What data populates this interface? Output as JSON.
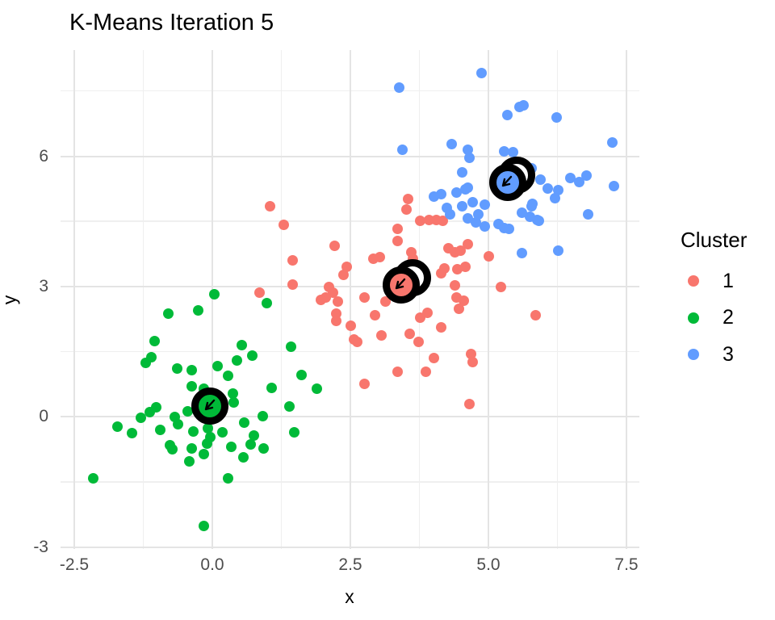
{
  "chart_data": {
    "type": "scatter",
    "title": "K-Means Iteration 5",
    "xlabel": "x",
    "ylabel": "y",
    "grid": true,
    "legend": {
      "title": "Cluster",
      "position": "right",
      "entries": [
        {
          "label": "1",
          "color": "#F8766D"
        },
        {
          "label": "2",
          "color": "#00BA38"
        },
        {
          "label": "3",
          "color": "#619CFF"
        }
      ]
    },
    "x_axis": {
      "range": [
        -2.72,
        7.74
      ],
      "ticks": [
        {
          "value": -2.5,
          "label": "-2.5"
        },
        {
          "value": 0.0,
          "label": "0.0"
        },
        {
          "value": 2.5,
          "label": "2.5"
        },
        {
          "value": 5.0,
          "label": "5.0"
        },
        {
          "value": 7.5,
          "label": "7.5"
        }
      ],
      "minor": [
        -1.25,
        1.25,
        3.75,
        6.25
      ]
    },
    "y_axis": {
      "range": [
        -3.05,
        8.45
      ],
      "ticks": [
        {
          "value": 6,
          "label": "6"
        },
        {
          "value": 3,
          "label": "3"
        },
        {
          "value": 0,
          "label": "0"
        },
        {
          "value": -3,
          "label": "-3"
        }
      ],
      "minor": [
        7.5,
        4.5,
        1.5,
        -1.5
      ]
    },
    "colors": {
      "grid_major": "#E4E4E4",
      "grid_minor": "#EFEFEF",
      "tick_text": "#4D4D4D",
      "center_ring": "#000000"
    },
    "series": [
      {
        "name": "1",
        "color": "#F8766D",
        "points": [
          [
            1.04,
            4.84
          ],
          [
            1.3,
            4.42
          ],
          [
            2.21,
            3.93
          ],
          [
            3.54,
            5.01
          ],
          [
            3.51,
            4.77
          ],
          [
            3.36,
            4.32
          ],
          [
            3.35,
            4.04
          ],
          [
            3.76,
            4.51
          ],
          [
            3.92,
            4.53
          ],
          [
            4.06,
            4.53
          ],
          [
            4.17,
            4.51
          ],
          [
            3.61,
            3.79
          ],
          [
            3.64,
            3.64
          ],
          [
            2.92,
            3.64
          ],
          [
            3.04,
            3.67
          ],
          [
            4.28,
            3.88
          ],
          [
            4.39,
            3.79
          ],
          [
            4.62,
            3.97
          ],
          [
            4.5,
            3.83
          ],
          [
            4.2,
            3.41
          ],
          [
            4.15,
            3.3
          ],
          [
            4.44,
            3.39
          ],
          [
            4.59,
            3.45
          ],
          [
            5.0,
            3.69
          ],
          [
            5.22,
            2.99
          ],
          [
            4.39,
            3.02
          ],
          [
            4.42,
            2.74
          ],
          [
            4.56,
            2.67
          ],
          [
            4.46,
            2.48
          ],
          [
            5.85,
            2.33
          ],
          [
            0.85,
            2.86
          ],
          [
            1.46,
            3.6
          ],
          [
            1.45,
            3.04
          ],
          [
            2.11,
            2.99
          ],
          [
            2.19,
            2.86
          ],
          [
            2.05,
            2.74
          ],
          [
            1.97,
            2.7
          ],
          [
            2.38,
            3.26
          ],
          [
            2.44,
            3.45
          ],
          [
            2.27,
            2.65
          ],
          [
            2.76,
            2.74
          ],
          [
            3.13,
            2.65
          ],
          [
            2.25,
            2.37
          ],
          [
            2.25,
            2.21
          ],
          [
            2.51,
            2.09
          ],
          [
            2.95,
            2.33
          ],
          [
            2.56,
            1.78
          ],
          [
            2.63,
            1.72
          ],
          [
            3.07,
            1.87
          ],
          [
            3.58,
            1.91
          ],
          [
            3.73,
            1.72
          ],
          [
            3.76,
            2.28
          ],
          [
            3.9,
            2.39
          ],
          [
            4.15,
            2.06
          ],
          [
            4.68,
            1.44
          ],
          [
            4.71,
            1.26
          ],
          [
            4.01,
            1.35
          ],
          [
            3.86,
            1.03
          ],
          [
            3.35,
            1.03
          ],
          [
            2.76,
            0.76
          ],
          [
            4.66,
            0.3
          ]
        ]
      },
      {
        "name": "2",
        "color": "#00BA38",
        "points": [
          [
            -0.8,
            2.37
          ],
          [
            -0.25,
            2.45
          ],
          [
            0.99,
            2.61
          ],
          [
            0.04,
            2.82
          ],
          [
            -1.04,
            1.74
          ],
          [
            -1.11,
            1.37
          ],
          [
            -1.2,
            1.24
          ],
          [
            0.54,
            1.65
          ],
          [
            1.43,
            1.61
          ],
          [
            0.72,
            1.41
          ],
          [
            0.44,
            1.29
          ],
          [
            -0.63,
            1.11
          ],
          [
            -0.38,
            1.07
          ],
          [
            0.09,
            1.16
          ],
          [
            0.28,
            0.94
          ],
          [
            1.62,
            0.96
          ],
          [
            1.08,
            0.66
          ],
          [
            1.9,
            0.64
          ],
          [
            -0.16,
            0.64
          ],
          [
            -0.37,
            0.7
          ],
          [
            0.37,
            0.53
          ],
          [
            0.39,
            0.33
          ],
          [
            -1.02,
            0.22
          ],
          [
            -1.14,
            0.1
          ],
          [
            -1.3,
            -0.02
          ],
          [
            -0.44,
            0.12
          ],
          [
            1.4,
            0.23
          ],
          [
            0.91,
            0.01
          ],
          [
            -0.68,
            -0.01
          ],
          [
            -0.62,
            -0.17
          ],
          [
            -1.72,
            -0.22
          ],
          [
            -1.45,
            -0.37
          ],
          [
            -0.94,
            -0.31
          ],
          [
            -0.34,
            -0.33
          ],
          [
            -0.08,
            -0.27
          ],
          [
            -0.04,
            -0.47
          ],
          [
            0.18,
            -0.36
          ],
          [
            1.49,
            -0.36
          ],
          [
            0.58,
            -0.13
          ],
          [
            0.76,
            -0.44
          ],
          [
            0.7,
            -0.64
          ],
          [
            0.93,
            -0.72
          ],
          [
            -0.77,
            -0.66
          ],
          [
            -0.72,
            -0.74
          ],
          [
            -0.09,
            -0.61
          ],
          [
            -0.38,
            -0.72
          ],
          [
            0.35,
            -0.7
          ],
          [
            -0.16,
            -0.85
          ],
          [
            0.57,
            -0.94
          ],
          [
            -0.41,
            -1.03
          ],
          [
            -2.15,
            -1.42
          ],
          [
            0.28,
            -1.42
          ],
          [
            -0.15,
            -2.52
          ]
        ]
      },
      {
        "name": "3",
        "color": "#619CFF",
        "points": [
          [
            4.88,
            7.91
          ],
          [
            3.39,
            7.58
          ],
          [
            5.56,
            7.13
          ],
          [
            5.63,
            7.17
          ],
          [
            5.34,
            6.94
          ],
          [
            6.24,
            6.89
          ],
          [
            7.24,
            6.31
          ],
          [
            3.44,
            6.14
          ],
          [
            4.34,
            6.28
          ],
          [
            4.63,
            6.14
          ],
          [
            4.66,
            5.96
          ],
          [
            5.29,
            6.11
          ],
          [
            5.44,
            6.09
          ],
          [
            4.53,
            5.63
          ],
          [
            5.78,
            5.72
          ],
          [
            5.95,
            5.46
          ],
          [
            6.49,
            5.5
          ],
          [
            6.64,
            5.4
          ],
          [
            6.78,
            5.55
          ],
          [
            7.27,
            5.31
          ],
          [
            6.07,
            5.26
          ],
          [
            6.27,
            5.22
          ],
          [
            6.21,
            5.03
          ],
          [
            4.01,
            5.07
          ],
          [
            4.15,
            5.12
          ],
          [
            4.42,
            5.16
          ],
          [
            4.59,
            5.24
          ],
          [
            4.63,
            5.28
          ],
          [
            4.53,
            4.84
          ],
          [
            4.24,
            4.81
          ],
          [
            4.3,
            4.66
          ],
          [
            4.71,
            4.94
          ],
          [
            4.93,
            4.88
          ],
          [
            4.82,
            4.66
          ],
          [
            4.78,
            4.47
          ],
          [
            4.93,
            4.38
          ],
          [
            5.18,
            4.44
          ],
          [
            5.29,
            4.35
          ],
          [
            5.37,
            4.32
          ],
          [
            4.63,
            4.57
          ],
          [
            5.61,
            4.7
          ],
          [
            5.78,
            4.84
          ],
          [
            5.88,
            4.53
          ],
          [
            5.8,
            4.9
          ],
          [
            5.76,
            4.6
          ],
          [
            5.91,
            4.51
          ],
          [
            6.8,
            4.66
          ],
          [
            5.61,
            3.77
          ],
          [
            6.27,
            3.83
          ]
        ]
      }
    ],
    "centers": [
      {
        "cluster": "1",
        "color": "#F8766D",
        "x": 3.42,
        "y": 3.04,
        "prev_x": 3.63,
        "prev_y": 3.21
      },
      {
        "cluster": "2",
        "color": "#00BA38",
        "x": -0.04,
        "y": 0.25,
        "prev_x": null,
        "prev_y": null
      },
      {
        "cluster": "3",
        "color": "#619CFF",
        "x": 5.35,
        "y": 5.4,
        "prev_x": 5.51,
        "prev_y": 5.57
      }
    ]
  }
}
